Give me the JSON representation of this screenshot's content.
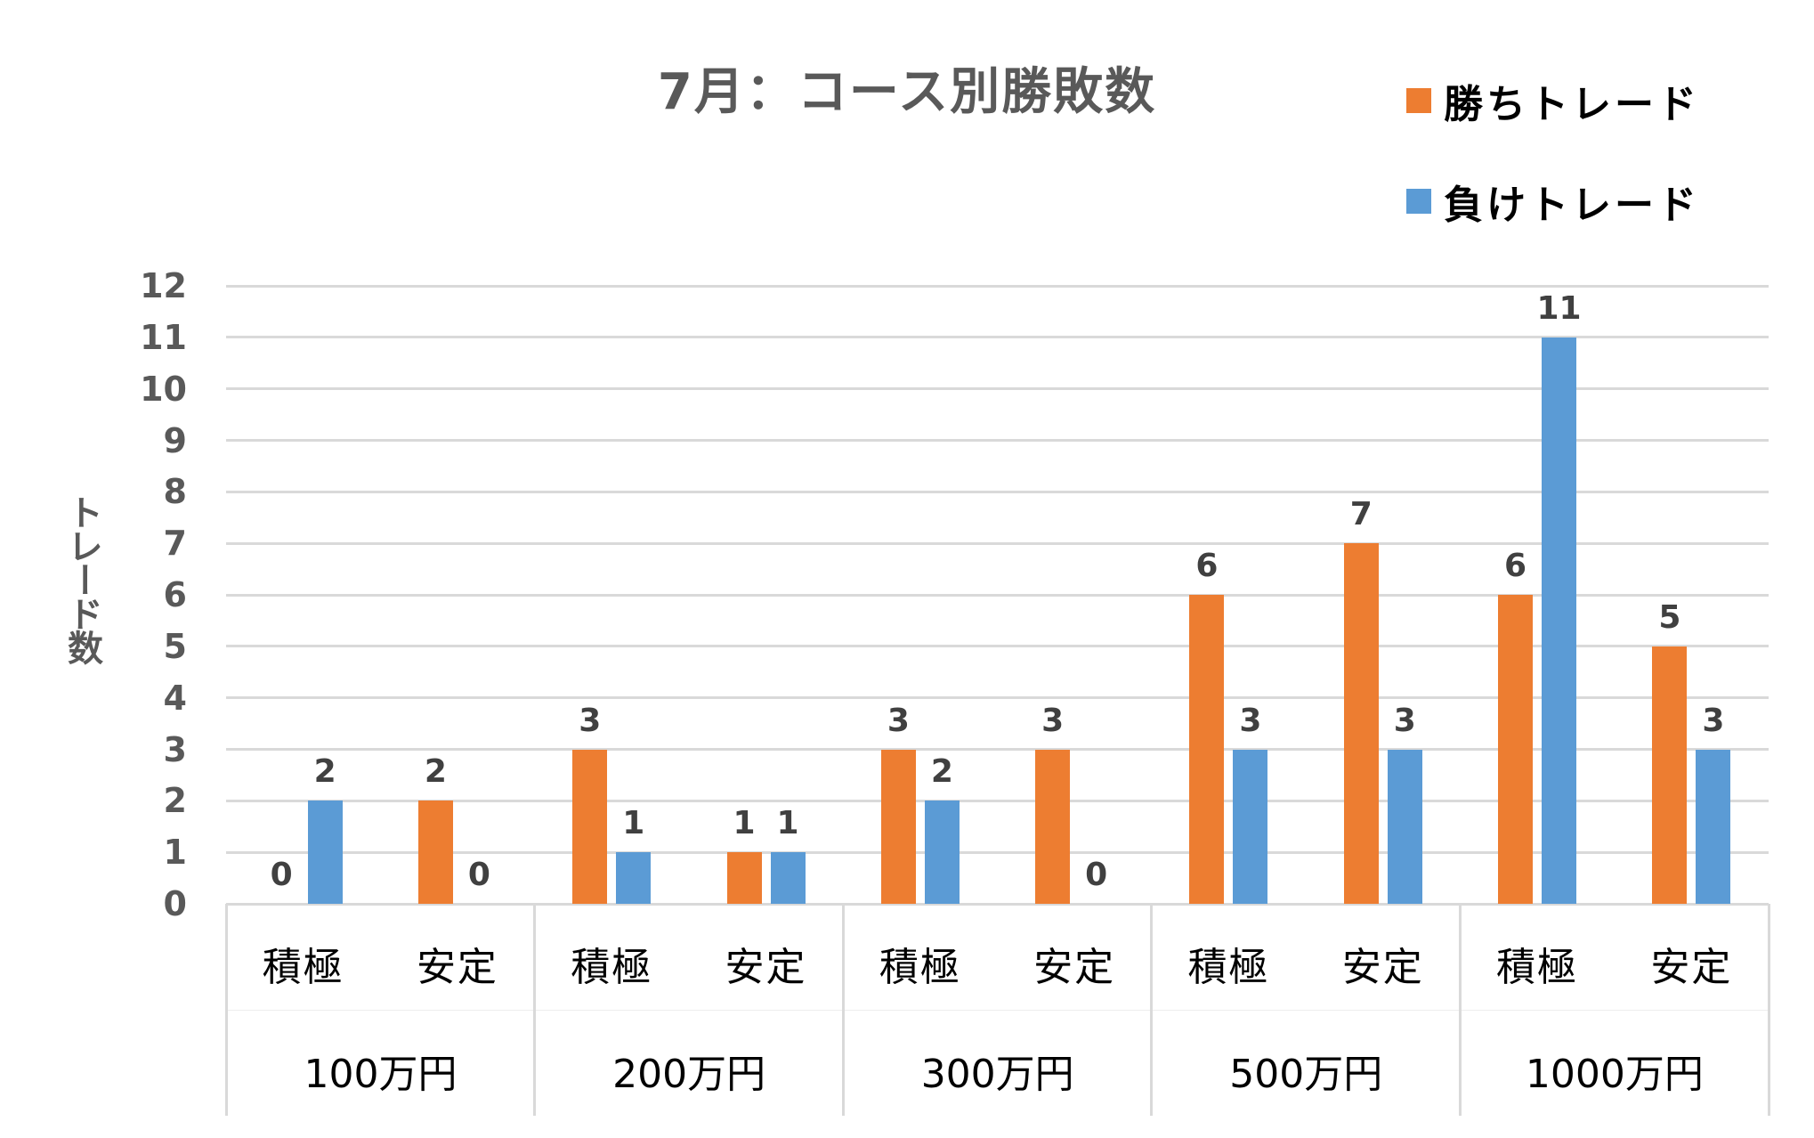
{
  "title": "7月：コース別勝敗数",
  "legend": [
    {
      "label": "勝ちトレード",
      "color": "#ED7D31"
    },
    {
      "label": "負けトレード",
      "color": "#5B9BD5"
    }
  ],
  "y_axis": {
    "title": "トレード数",
    "ticks": [
      "0",
      "1",
      "2",
      "3",
      "4",
      "5",
      "6",
      "7",
      "8",
      "9",
      "10",
      "11",
      "12"
    ]
  },
  "groups": [
    {
      "label": "100万円",
      "categories": [
        {
          "label": "積極"
        },
        {
          "label": "安定"
        }
      ]
    },
    {
      "label": "200万円",
      "categories": [
        {
          "label": "積極"
        },
        {
          "label": "安定"
        }
      ]
    },
    {
      "label": "300万円",
      "categories": [
        {
          "label": "積極"
        },
        {
          "label": "安定"
        }
      ]
    },
    {
      "label": "500万円",
      "categories": [
        {
          "label": "積極"
        },
        {
          "label": "安定"
        }
      ]
    },
    {
      "label": "1000万円",
      "categories": [
        {
          "label": "積極"
        },
        {
          "label": "安定"
        }
      ]
    }
  ],
  "chart_data": {
    "type": "bar",
    "title": "7月：コース別勝敗数",
    "xlabel": "",
    "ylabel": "トレード数",
    "ylim": [
      0,
      12
    ],
    "grid": true,
    "legend_position": "top-right",
    "categories": [
      "100万円 積極",
      "100万円 安定",
      "200万円 積極",
      "200万円 安定",
      "300万円 積極",
      "300万円 安定",
      "500万円 積極",
      "500万円 安定",
      "1000万円 積極",
      "1000万円 安定"
    ],
    "series": [
      {
        "name": "勝ちトレード",
        "color": "#ED7D31",
        "values": [
          0,
          2,
          3,
          1,
          3,
          3,
          6,
          7,
          6,
          5
        ]
      },
      {
        "name": "負けトレード",
        "color": "#5B9BD5",
        "values": [
          2,
          0,
          1,
          1,
          2,
          0,
          3,
          3,
          11,
          3
        ]
      }
    ]
  }
}
